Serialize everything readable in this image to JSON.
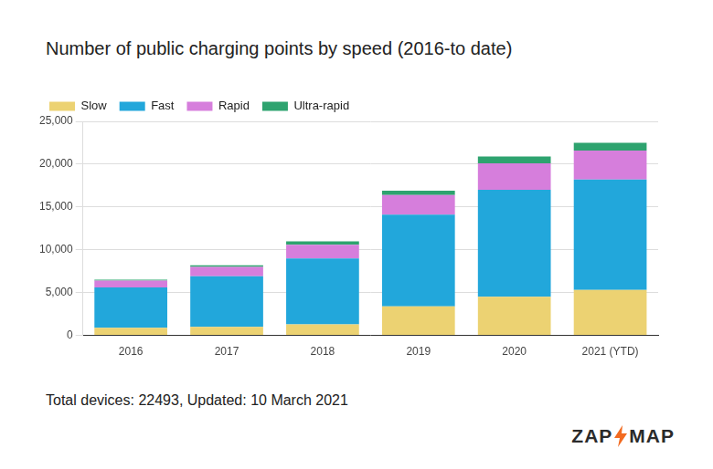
{
  "chart_data": {
    "type": "bar",
    "title": "Number of public charging points by speed (2016-to date)",
    "footer": "Total devices: 22493, Updated: 10 March 2021",
    "logo_text": [
      "ZAP",
      "MAP"
    ],
    "categories": [
      "2016",
      "2017",
      "2018",
      "2019",
      "2020",
      "2021 (YTD)"
    ],
    "series": [
      {
        "name": "Slow",
        "color": "#ecd272",
        "values": [
          900,
          1000,
          1300,
          3400,
          4500,
          5300
        ]
      },
      {
        "name": "Fast",
        "color": "#22a7db",
        "values": [
          4700,
          5900,
          7700,
          10700,
          12500,
          12900
        ]
      },
      {
        "name": "Rapid",
        "color": "#d67edc",
        "values": [
          800,
          1100,
          1600,
          2300,
          3100,
          3400
        ]
      },
      {
        "name": "Ultra-rapid",
        "color": "#2ea36f",
        "values": [
          100,
          200,
          400,
          500,
          800,
          900
        ]
      }
    ],
    "ylim": [
      0,
      25000
    ],
    "yticks": [
      0,
      {
        "value": 5000,
        "label": "5,000"
      },
      {
        "value": 10000,
        "label": "10,000"
      },
      {
        "value": 15000,
        "label": "15,000"
      },
      {
        "value": 20000,
        "label": "20,000"
      },
      {
        "value": 25000,
        "label": "25,000"
      }
    ],
    "stacked": true,
    "grid": true,
    "legend": "top-left"
  }
}
